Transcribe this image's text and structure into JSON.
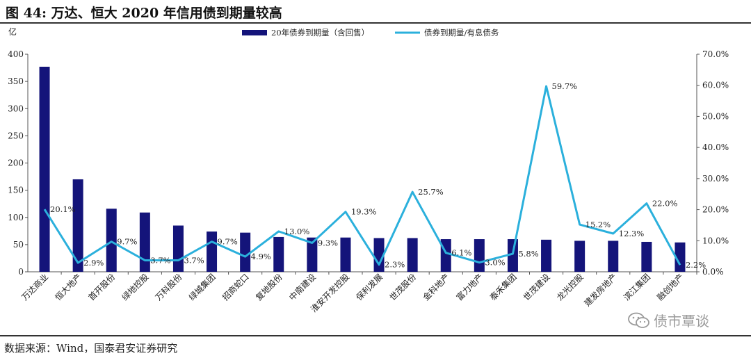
{
  "figure": {
    "title": "图  44:  万达、恒大 2020 年信用债到期量较高",
    "source": "数据来源：Wind，国泰君安证券研究",
    "watermark": "债市覃谈",
    "watermark_icon": "wechat-icon"
  },
  "chart_data": {
    "type": "bar",
    "y_unit_label": "亿",
    "categories": [
      "万达商业",
      "恒大地产",
      "首开股份",
      "绿地控股",
      "万科股份",
      "绿城集团",
      "招商蛇口",
      "复地股份",
      "中南建设",
      "淮安开发控股",
      "保利发展",
      "世茂股份",
      "金科地产",
      "富力地产",
      "泰禾集团",
      "世茂建设",
      "龙光控股",
      "建发房地产",
      "滨江集团",
      "融创地产"
    ],
    "series": [
      {
        "name": "20年债券到期量（含回售）",
        "type": "bar",
        "axis": "left",
        "color": "#14147a",
        "values": [
          377,
          170,
          116,
          109,
          85,
          74,
          72,
          64,
          63,
          63,
          62,
          62,
          60,
          60,
          60,
          59,
          57,
          57,
          55,
          54
        ]
      },
      {
        "name": "债券到期量/有息债务",
        "type": "line",
        "axis": "right",
        "color": "#2bb0dc",
        "values": [
          20.1,
          2.9,
          9.7,
          3.7,
          3.7,
          9.7,
          4.9,
          13.0,
          9.3,
          19.3,
          2.3,
          25.7,
          6.1,
          3.0,
          5.8,
          59.7,
          15.2,
          12.3,
          22.0,
          2.2
        ],
        "labels": [
          "20.1%",
          "2.9%",
          "9.7%",
          "3.7%",
          "3.7%",
          "9.7%",
          "4.9%",
          "13.0%",
          "9.3%",
          "19.3%",
          "2.3%",
          "25.7%",
          "6.1%",
          "3.0%",
          "5.8%",
          "59.7%",
          "15.2%",
          "12.3%",
          "22.0%",
          "2.2%"
        ]
      }
    ],
    "ylim_left": [
      0,
      400
    ],
    "yticks_left": [
      "0",
      "50",
      "100",
      "150",
      "200",
      "250",
      "300",
      "350",
      "400"
    ],
    "ylim_right": [
      0,
      70
    ],
    "yticks_right": [
      "0.0%",
      "10.0%",
      "20.0%",
      "30.0%",
      "40.0%",
      "50.0%",
      "60.0%",
      "70.0%"
    ],
    "grid": false,
    "legend_position": "top-center"
  }
}
